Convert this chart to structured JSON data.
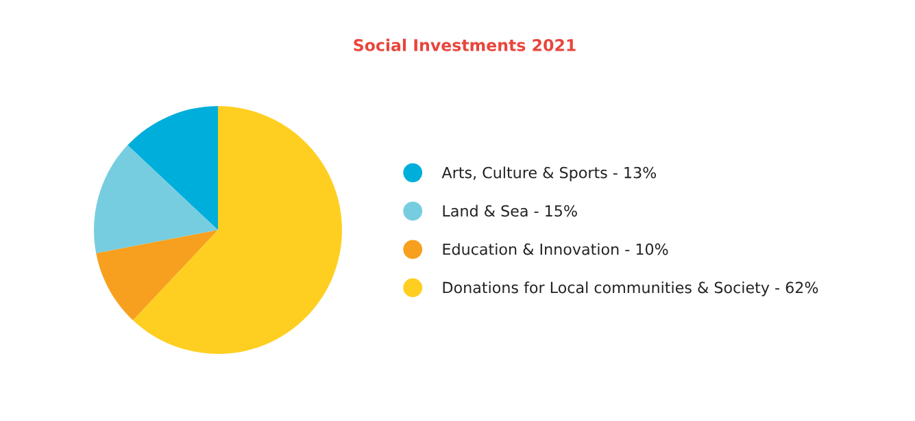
{
  "chart_data": {
    "type": "pie",
    "title": "Social Investments 2021",
    "categories": [
      "Arts, Culture & Sports - 13%",
      "Land & Sea - 15%",
      "Education & Innovation - 10%",
      "Donations for Local communities & Society - 62%"
    ],
    "values": [
      13,
      15,
      10,
      62
    ],
    "colors": [
      "#00aedb",
      "#77cde0",
      "#f7a01f",
      "#fecf21"
    ],
    "legend": "right"
  }
}
